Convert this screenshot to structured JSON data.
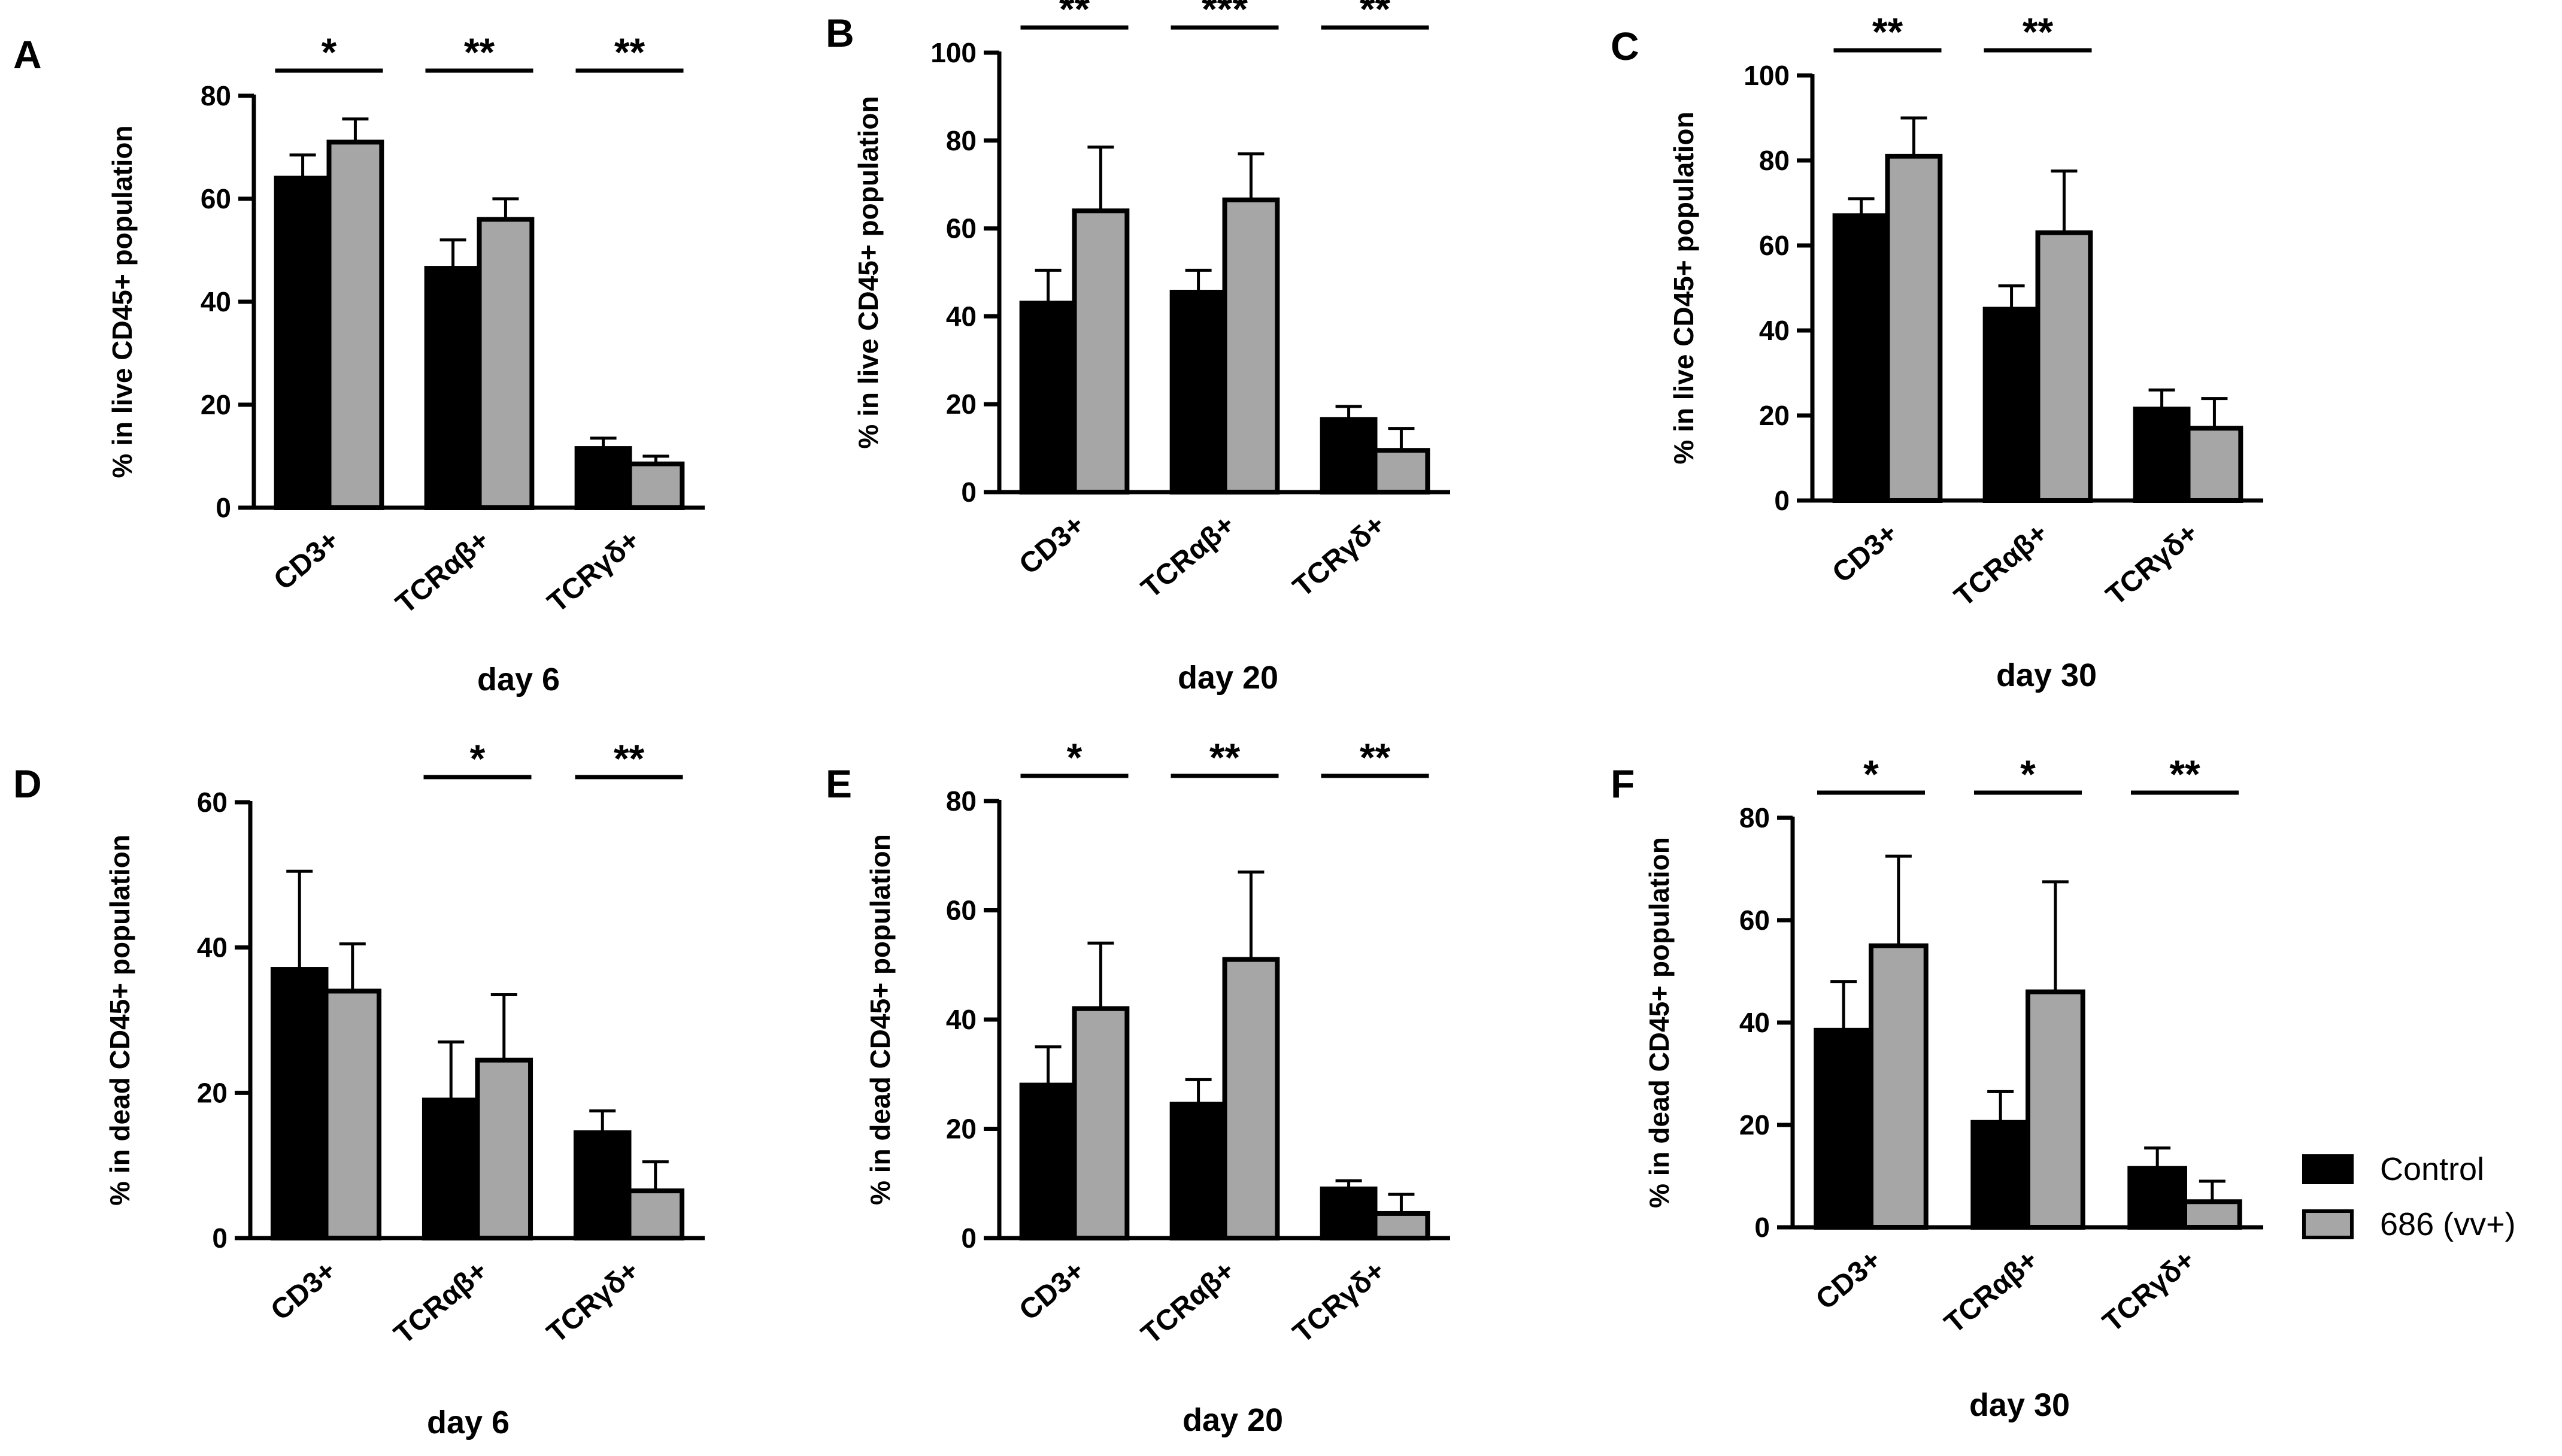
{
  "colors": {
    "control": "#000000",
    "treated": "#a6a6a6",
    "edge": "#000000"
  },
  "legend": {
    "position": "bottom-right",
    "items": [
      {
        "label": "Control",
        "color": "#000000"
      },
      {
        "label": "686 (vv+)",
        "color": "#a6a6a6"
      }
    ]
  },
  "chart_data": [
    {
      "panel": "A",
      "type": "bar",
      "categories": [
        "CD3+",
        "TCRαβ+",
        "TCRγδ+"
      ],
      "series": [
        {
          "name": "Control",
          "values": [
            64,
            46.5,
            11.5
          ],
          "errors": [
            4.5,
            5.5,
            2
          ]
        },
        {
          "name": "686 (vv+)",
          "values": [
            71,
            56,
            8.5
          ],
          "errors": [
            4.5,
            4,
            1.5
          ]
        }
      ],
      "significance": [
        "*",
        "**",
        "**"
      ],
      "xlabel": "day 6",
      "ylabel": "% in live CD45+ population",
      "ylim": [
        0,
        80
      ],
      "yticks": [
        0,
        20,
        40,
        60,
        80
      ]
    },
    {
      "panel": "B",
      "type": "bar",
      "categories": [
        "CD3+",
        "TCRαβ+",
        "TCRγδ+"
      ],
      "series": [
        {
          "name": "Control",
          "values": [
            43,
            45.5,
            16.5
          ],
          "errors": [
            7.5,
            5,
            3
          ]
        },
        {
          "name": "686 (vv+)",
          "values": [
            64,
            66.5,
            9.5
          ],
          "errors": [
            14.5,
            10.5,
            5
          ]
        }
      ],
      "significance": [
        "**",
        "***",
        "**"
      ],
      "xlabel": "day 20",
      "ylabel": "% in live CD45+ population",
      "ylim": [
        0,
        100
      ],
      "yticks": [
        0,
        20,
        40,
        60,
        80,
        100
      ]
    },
    {
      "panel": "C",
      "type": "bar",
      "categories": [
        "CD3+",
        "TCRαβ+",
        "TCRγδ+"
      ],
      "series": [
        {
          "name": "Control",
          "values": [
            67,
            45,
            21.5
          ],
          "errors": [
            4,
            5.5,
            4.5
          ]
        },
        {
          "name": "686 (vv+)",
          "values": [
            81,
            63,
            17
          ],
          "errors": [
            9,
            14.5,
            7
          ]
        }
      ],
      "significance": [
        "**",
        "**",
        ""
      ],
      "xlabel": "day 30",
      "ylabel": "% in live CD45+ population",
      "ylim": [
        0,
        100
      ],
      "yticks": [
        0,
        20,
        40,
        60,
        80,
        100
      ]
    },
    {
      "panel": "D",
      "type": "bar",
      "categories": [
        "CD3+",
        "TCRαβ+",
        "TCRγδ+"
      ],
      "series": [
        {
          "name": "Control",
          "values": [
            37,
            19,
            14.5
          ],
          "errors": [
            13.5,
            8,
            3
          ]
        },
        {
          "name": "686 (vv+)",
          "values": [
            34,
            24.5,
            6.5
          ],
          "errors": [
            6.5,
            9,
            4
          ]
        }
      ],
      "significance": [
        "",
        "*",
        "**"
      ],
      "xlabel": "day 6",
      "ylabel": "% in dead CD45+ population",
      "ylim": [
        0,
        60
      ],
      "yticks": [
        0,
        20,
        40,
        60
      ]
    },
    {
      "panel": "E",
      "type": "bar",
      "categories": [
        "CD3+",
        "TCRαβ+",
        "TCRγδ+"
      ],
      "series": [
        {
          "name": "Control",
          "values": [
            28,
            24.5,
            9
          ],
          "errors": [
            7,
            4.5,
            1.5
          ]
        },
        {
          "name": "686 (vv+)",
          "values": [
            42,
            51,
            4.5
          ],
          "errors": [
            12,
            16,
            3.5
          ]
        }
      ],
      "significance": [
        "*",
        "**",
        "**"
      ],
      "xlabel": "day 20",
      "ylabel": "% in dead CD45+ population",
      "ylim": [
        0,
        80
      ],
      "yticks": [
        0,
        20,
        40,
        60,
        80
      ]
    },
    {
      "panel": "F",
      "type": "bar",
      "categories": [
        "CD3+",
        "TCRαβ+",
        "TCRγδ+"
      ],
      "series": [
        {
          "name": "Control",
          "values": [
            38.5,
            20.5,
            11.5
          ],
          "errors": [
            9.5,
            6,
            4
          ]
        },
        {
          "name": "686 (vv+)",
          "values": [
            55,
            46,
            5
          ],
          "errors": [
            17.5,
            21.5,
            4
          ]
        }
      ],
      "significance": [
        "*",
        "*",
        "**"
      ],
      "xlabel": "day 30",
      "ylabel": "% in dead CD45+ population",
      "ylim": [
        0,
        80
      ],
      "yticks": [
        0,
        20,
        40,
        60,
        80
      ]
    }
  ]
}
